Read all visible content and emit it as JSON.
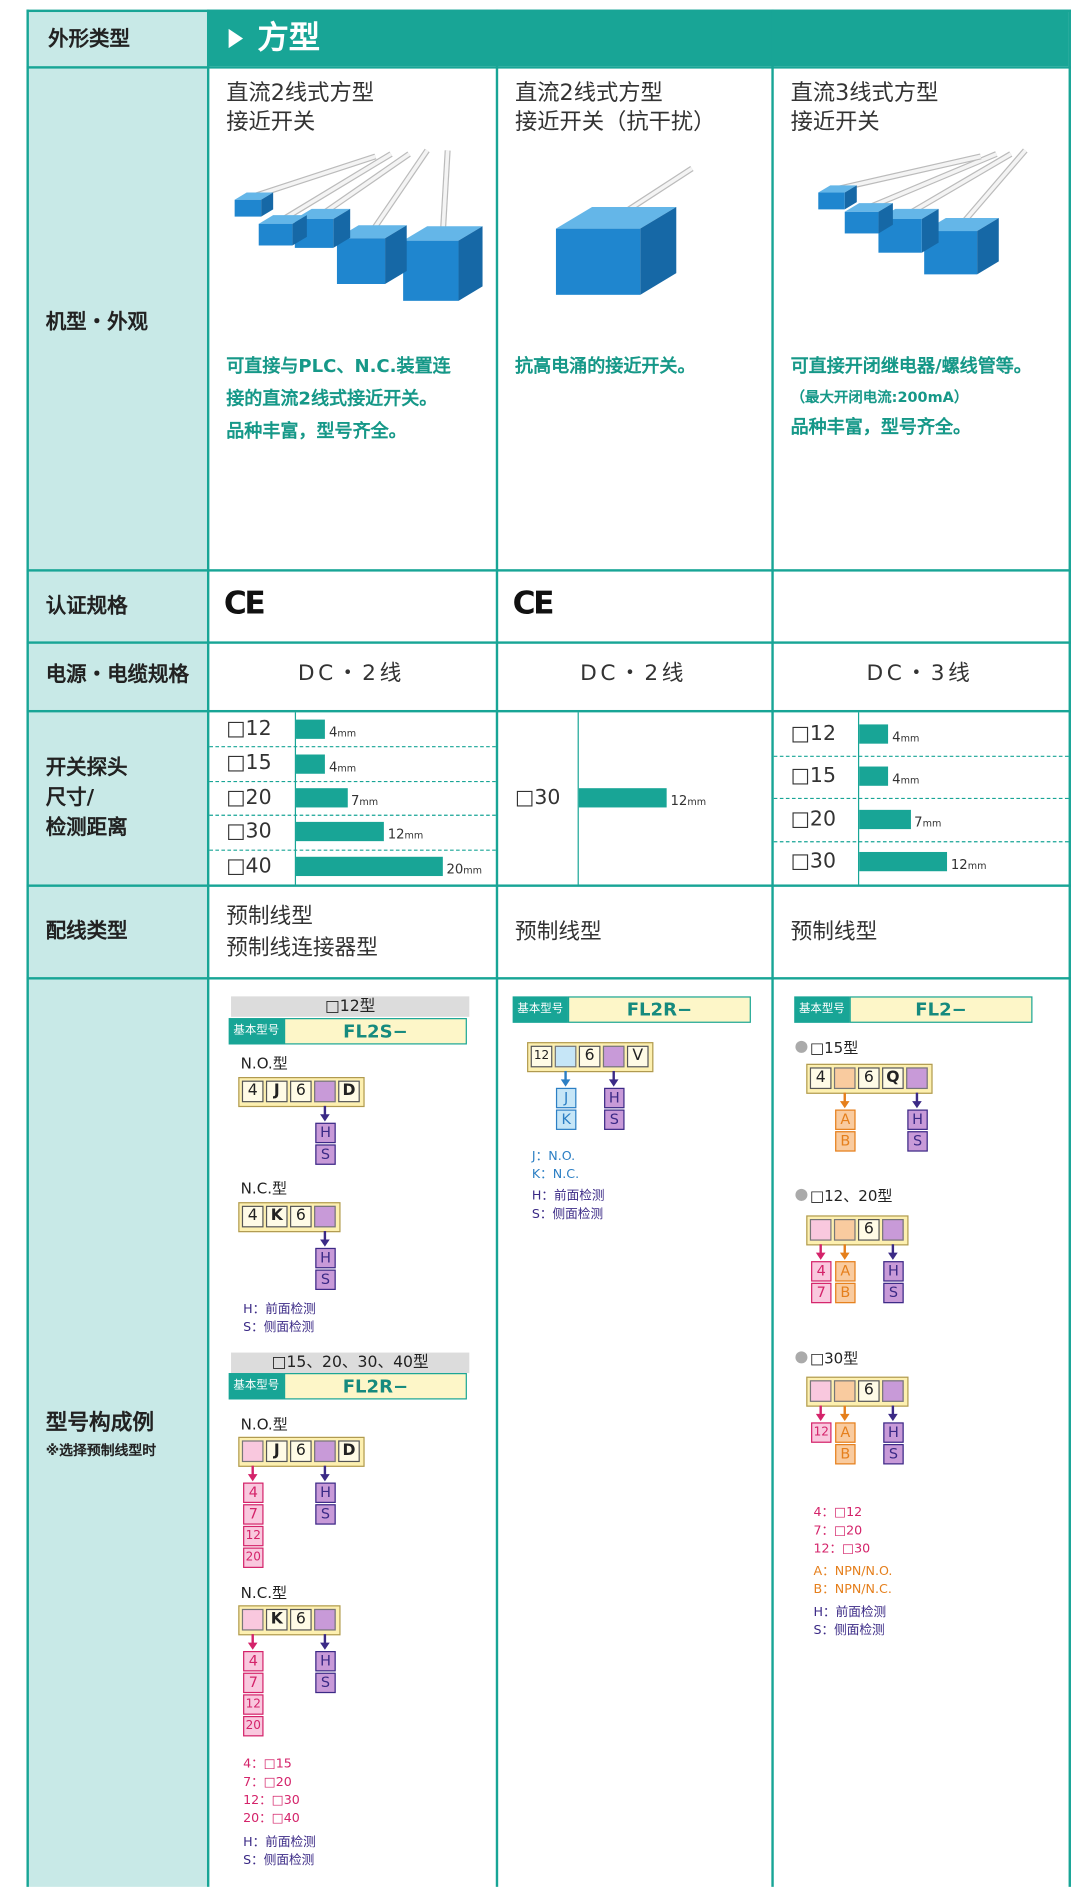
{
  "header": {
    "label": "外形类型",
    "title": "方型"
  },
  "row_labels": {
    "appearance": "机型・外观",
    "certification": "认证规格",
    "power": "电源・电缆规格",
    "size": [
      "开关探头",
      "尺寸/",
      "检测距离"
    ],
    "wiring": "配线类型",
    "model": "型号构成例",
    "model_note": "※选择预制线型时"
  },
  "columns": [
    {
      "name": [
        "直流2线式方型",
        "接近开关"
      ],
      "description": [
        "可直接与PLC、N.C.装置连",
        "接的直流2线式接近开关。",
        "品种丰富，型号齐全。"
      ],
      "cert": "CE",
      "power": "DC・2线",
      "sizes": [
        {
          "size": "□12",
          "distance": 4,
          "unit": "mm"
        },
        {
          "size": "□15",
          "distance": 4,
          "unit": "mm"
        },
        {
          "size": "□20",
          "distance": 7,
          "unit": "mm"
        },
        {
          "size": "□30",
          "distance": 12,
          "unit": "mm"
        },
        {
          "size": "□40",
          "distance": 20,
          "unit": "mm"
        }
      ],
      "wiring": [
        "预制线型",
        "预制线连接器型"
      ],
      "model": [
        {
          "heading": "□12型",
          "base_label": "基本型号",
          "base_code": "FL2S−",
          "variants": [
            {
              "label": "N.O.型",
              "boxes": [
                "4",
                "J",
                "6",
                null,
                "D"
              ],
              "options": [
                {
                  "slot": 3,
                  "fill": "#c89ad8",
                  "color": "#3b2a86",
                  "items": [
                    "H",
                    "S"
                  ]
                }
              ]
            },
            {
              "label": "N.C.型",
              "boxes": [
                "4",
                "K",
                "6",
                null
              ],
              "options": [
                {
                  "slot": 3,
                  "fill": "#c89ad8",
                  "color": "#3b2a86",
                  "items": [
                    "H",
                    "S"
                  ]
                }
              ]
            }
          ],
          "legend": [
            {
              "color": "#3b2a86",
              "items": [
                "H：前面检测",
                "S：侧面检测"
              ]
            }
          ]
        },
        {
          "heading": "□15、20、30、40型",
          "base_label": "基本型号",
          "base_code": "FL2R−",
          "variants": [
            {
              "label": "N.O.型",
              "boxes": [
                null,
                "J",
                "6",
                null,
                "D"
              ],
              "options": [
                {
                  "slot": 0,
                  "fill": "#f9c8de",
                  "color": "#d4236a",
                  "items": [
                    "4",
                    "7",
                    "12",
                    "20"
                  ]
                },
                {
                  "slot": 3,
                  "fill": "#c89ad8",
                  "color": "#3b2a86",
                  "items": [
                    "H",
                    "S"
                  ]
                }
              ]
            },
            {
              "label": "N.C.型",
              "boxes": [
                null,
                "K",
                "6",
                null
              ],
              "options": [
                {
                  "slot": 0,
                  "fill": "#f9c8de",
                  "color": "#d4236a",
                  "items": [
                    "4",
                    "7",
                    "12",
                    "20"
                  ]
                },
                {
                  "slot": 3,
                  "fill": "#c89ad8",
                  "color": "#3b2a86",
                  "items": [
                    "H",
                    "S"
                  ]
                }
              ]
            }
          ],
          "legend": [
            {
              "color": "#d4236a",
              "items": [
                "4：□15",
                "7：□20",
                "12：□30",
                "20：□40"
              ]
            },
            {
              "color": "#3b2a86",
              "items": [
                "H：前面检测",
                "S：侧面检测"
              ]
            }
          ]
        }
      ]
    },
    {
      "name": [
        "直流2线式方型",
        "接近开关（抗干扰）"
      ],
      "description": [
        "抗高电涌的接近开关。"
      ],
      "cert": "CE",
      "power": "DC・2线",
      "sizes": [
        {
          "size": "□30",
          "distance": 12,
          "unit": "mm"
        }
      ],
      "wiring": [
        "预制线型"
      ],
      "model": [
        {
          "base_label": "基本型号",
          "base_code": "FL2R−",
          "variants": [
            {
              "boxes": [
                "12",
                null,
                "6",
                null,
                "V"
              ],
              "options": [
                {
                  "slot": 1,
                  "fill": "#c6e6f7",
                  "color": "#2c7fc4",
                  "items": [
                    "J",
                    "K"
                  ]
                },
                {
                  "slot": 3,
                  "fill": "#c89ad8",
                  "color": "#3b2a86",
                  "items": [
                    "H",
                    "S"
                  ]
                }
              ]
            }
          ],
          "legend": [
            {
              "color": "#2c7fc4",
              "items": [
                "J：N.O.",
                "K：N.C."
              ]
            },
            {
              "color": "#3b2a86",
              "items": [
                "H：前面检测",
                "S：侧面检测"
              ]
            }
          ]
        }
      ]
    },
    {
      "name": [
        "直流3线式方型",
        "接近开关"
      ],
      "description": [
        "可直接开闭继电器/螺线管等。",
        "（最大开闭电流:200mA）",
        "品种丰富，型号齐全。"
      ],
      "power": "DC・3线",
      "sizes": [
        {
          "size": "□12",
          "distance": 4,
          "unit": "mm"
        },
        {
          "size": "□15",
          "distance": 4,
          "unit": "mm"
        },
        {
          "size": "□20",
          "distance": 7,
          "unit": "mm"
        },
        {
          "size": "□30",
          "distance": 12,
          "unit": "mm"
        }
      ],
      "wiring": [
        "预制线型"
      ],
      "model": [
        {
          "base_label": "基本型号",
          "base_code": "FL2−",
          "variants": [
            {
              "label": "□15型",
              "boxes": [
                "4",
                null,
                "6",
                "Q",
                null
              ],
              "options": [
                {
                  "slot": 1,
                  "fill": "#f9cb9f",
                  "color": "#e57f1c",
                  "items": [
                    "A",
                    "B"
                  ]
                },
                {
                  "slot": 4,
                  "fill": "#c89ad8",
                  "color": "#3b2a86",
                  "items": [
                    "H",
                    "S"
                  ]
                }
              ]
            },
            {
              "label": "□12、20型",
              "boxes": [
                null,
                null,
                "6",
                null
              ],
              "options": [
                {
                  "slot": 0,
                  "fill": "#f9c8de",
                  "color": "#d4236a",
                  "items": [
                    "4",
                    "7"
                  ]
                },
                {
                  "slot": 1,
                  "fill": "#f9cb9f",
                  "color": "#e57f1c",
                  "items": [
                    "A",
                    "B"
                  ]
                },
                {
                  "slot": 3,
                  "fill": "#c89ad8",
                  "color": "#3b2a86",
                  "items": [
                    "H",
                    "S"
                  ]
                }
              ]
            },
            {
              "label": "□30型",
              "boxes": [
                null,
                null,
                "6",
                null
              ],
              "options": [
                {
                  "slot": 0,
                  "fill": "#f9c8de",
                  "color": "#d4236a",
                  "items": [
                    "12"
                  ]
                },
                {
                  "slot": 1,
                  "fill": "#f9cb9f",
                  "color": "#e57f1c",
                  "items": [
                    "A",
                    "B"
                  ]
                },
                {
                  "slot": 3,
                  "fill": "#c89ad8",
                  "color": "#3b2a86",
                  "items": [
                    "H",
                    "S"
                  ]
                }
              ]
            }
          ],
          "legend": [
            {
              "color": "#d4236a",
              "items": [
                "4：□12",
                "7：□20",
                "12：□30"
              ]
            },
            {
              "color": "#e57f1c",
              "items": [
                "A：NPN/N.O.",
                "B：NPN/N.C."
              ]
            },
            {
              "color": "#3b2a86",
              "items": [
                "H：前面检测",
                "S：侧面检测"
              ]
            }
          ]
        }
      ]
    }
  ]
}
